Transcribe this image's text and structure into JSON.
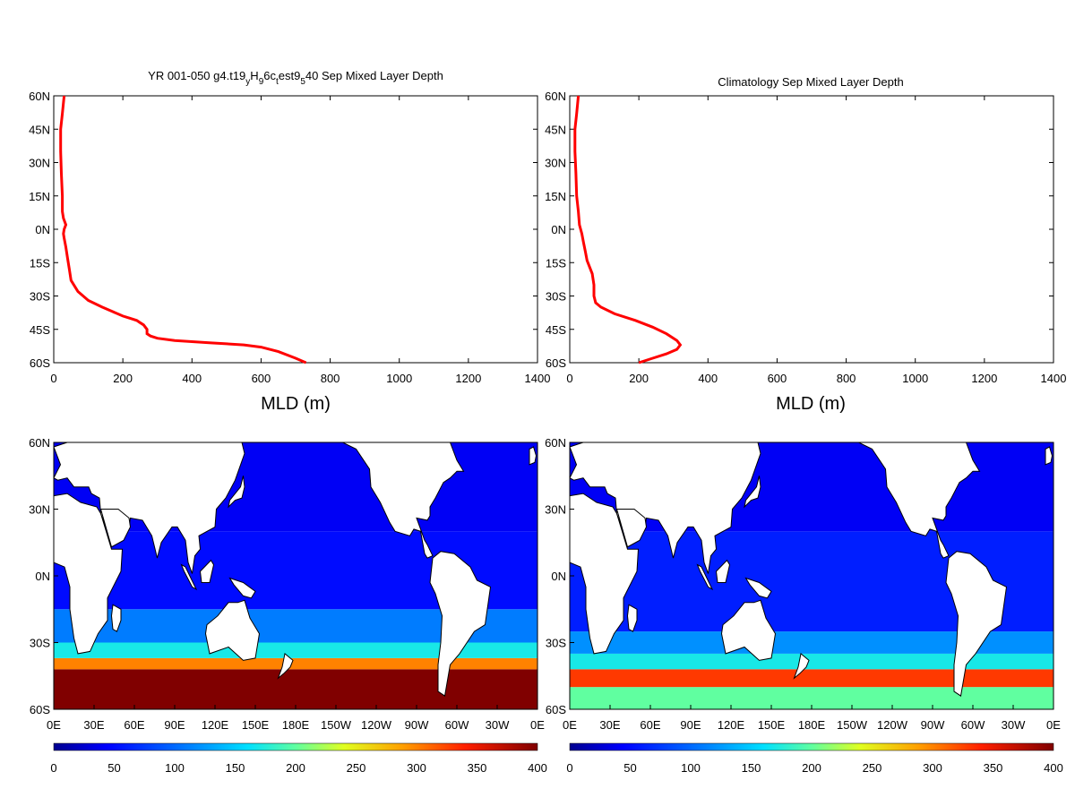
{
  "panels": {
    "top_left": {
      "title": "YR 001-050 g4.t19",
      "title_parts": [
        {
          "t": "YR 001-050 g4.t19",
          "sub": false
        },
        {
          "t": "y",
          "sub": true
        },
        {
          "t": "H",
          "sub": false
        },
        {
          "t": "9",
          "sub": true
        },
        {
          "t": "6c",
          "sub": false
        },
        {
          "t": "t",
          "sub": true
        },
        {
          "t": "est9",
          "sub": false
        },
        {
          "t": "5",
          "sub": true
        },
        {
          "t": "40 Sep Mixed Layer Depth",
          "sub": false
        }
      ]
    },
    "top_right": {
      "title": "Climatology Sep Mixed Layer Depth"
    }
  },
  "colorbar": {
    "ticks": [
      "0",
      "50",
      "100",
      "150",
      "200",
      "250",
      "300",
      "350",
      "400"
    ],
    "colors": [
      "#00008f",
      "#0000ff",
      "#0060ff",
      "#00c0ff",
      "#40ffc0",
      "#c0ff40",
      "#ffd000",
      "#ff6000",
      "#e00000",
      "#800000"
    ]
  },
  "chart_data": [
    {
      "type": "line",
      "xlabel": "MLD (m)",
      "ylabel": "",
      "xlim": [
        0,
        1400
      ],
      "ylim": [
        -60,
        60
      ],
      "x_ticks": [
        "0",
        "200",
        "400",
        "600",
        "800",
        "1000",
        "1200",
        "1400"
      ],
      "y_ticks": [
        "60N",
        "45N",
        "30N",
        "15N",
        "0N",
        "15S",
        "30S",
        "45S",
        "60S"
      ],
      "series": [
        {
          "color": "#ff0000",
          "points": [
            [
              730,
              -60
            ],
            [
              700,
              -58
            ],
            [
              650,
              -55
            ],
            [
              600,
              -53
            ],
            [
              550,
              -52
            ],
            [
              500,
              -51.5
            ],
            [
              450,
              -51
            ],
            [
              350,
              -50
            ],
            [
              300,
              -49
            ],
            [
              280,
              -48
            ],
            [
              270,
              -47
            ],
            [
              270,
              -45
            ],
            [
              260,
              -43
            ],
            [
              250,
              -42
            ],
            [
              240,
              -41
            ],
            [
              220,
              -40
            ],
            [
              200,
              -39
            ],
            [
              170,
              -37
            ],
            [
              140,
              -35
            ],
            [
              100,
              -32
            ],
            [
              70,
              -28
            ],
            [
              50,
              -23
            ],
            [
              45,
              -18
            ],
            [
              40,
              -13
            ],
            [
              35,
              -8
            ],
            [
              30,
              -4
            ],
            [
              28,
              -2
            ],
            [
              30,
              0
            ],
            [
              35,
              2
            ],
            [
              28,
              5
            ],
            [
              25,
              8
            ],
            [
              25,
              15
            ],
            [
              22,
              25
            ],
            [
              20,
              35
            ],
            [
              20,
              45
            ],
            [
              25,
              52
            ],
            [
              30,
              60
            ]
          ]
        }
      ]
    },
    {
      "type": "line",
      "xlabel": "MLD (m)",
      "ylabel": "",
      "xlim": [
        0,
        1400
      ],
      "ylim": [
        -60,
        60
      ],
      "x_ticks": [
        "0",
        "200",
        "400",
        "600",
        "800",
        "1000",
        "1200",
        "1400"
      ],
      "y_ticks": [
        "60N",
        "45N",
        "30N",
        "15N",
        "0N",
        "15S",
        "30S",
        "45S",
        "60S"
      ],
      "series": [
        {
          "color": "#ff0000",
          "points": [
            [
              200,
              -60
            ],
            [
              240,
              -58
            ],
            [
              280,
              -56
            ],
            [
              310,
              -54
            ],
            [
              320,
              -52
            ],
            [
              310,
              -50
            ],
            [
              280,
              -47
            ],
            [
              240,
              -44
            ],
            [
              190,
              -41
            ],
            [
              130,
              -38
            ],
            [
              90,
              -35
            ],
            [
              75,
              -33
            ],
            [
              70,
              -30
            ],
            [
              70,
              -25
            ],
            [
              65,
              -20
            ],
            [
              50,
              -14
            ],
            [
              45,
              -10
            ],
            [
              40,
              -6
            ],
            [
              35,
              -2
            ],
            [
              28,
              2
            ],
            [
              25,
              8
            ],
            [
              20,
              15
            ],
            [
              18,
              25
            ],
            [
              15,
              35
            ],
            [
              15,
              45
            ],
            [
              20,
              52
            ],
            [
              25,
              60
            ]
          ]
        }
      ]
    },
    {
      "type": "heatmap",
      "title": "",
      "xlabel": "",
      "ylabel": "",
      "x_ticks": [
        "0E",
        "30E",
        "60E",
        "90E",
        "120E",
        "150E",
        "180E",
        "150W",
        "120W",
        "90W",
        "60W",
        "30W",
        "0E"
      ],
      "y_ticks": [
        "60N",
        "30N",
        "0N",
        "30S",
        "60S"
      ],
      "lon_range": [
        0,
        360
      ],
      "lat_range": [
        -60,
        60
      ],
      "color_range": [
        0,
        400
      ],
      "bands": [
        {
          "lat_from": -60,
          "lat_to": -42,
          "value": 400
        },
        {
          "lat_from": -42,
          "lat_to": -37,
          "value": 300
        },
        {
          "lat_from": -37,
          "lat_to": -30,
          "value": 170
        },
        {
          "lat_from": -30,
          "lat_to": -15,
          "value": 110
        },
        {
          "lat_from": -15,
          "lat_to": 20,
          "value": 50
        },
        {
          "lat_from": 20,
          "lat_to": 60,
          "value": 40
        }
      ]
    },
    {
      "type": "heatmap",
      "title": "",
      "xlabel": "",
      "ylabel": "",
      "x_ticks": [
        "0E",
        "30E",
        "60E",
        "90E",
        "120E",
        "150E",
        "180E",
        "150W",
        "120W",
        "90W",
        "60W",
        "30W",
        "0E"
      ],
      "y_ticks": [
        "60N",
        "30N",
        "0N",
        "30S",
        "60S"
      ],
      "lon_range": [
        0,
        360
      ],
      "lat_range": [
        -60,
        60
      ],
      "color_range": [
        0,
        400
      ],
      "bands": [
        {
          "lat_from": -60,
          "lat_to": -50,
          "value": 200
        },
        {
          "lat_from": -50,
          "lat_to": -42,
          "value": 330
        },
        {
          "lat_from": -42,
          "lat_to": -35,
          "value": 170
        },
        {
          "lat_from": -35,
          "lat_to": -25,
          "value": 120
        },
        {
          "lat_from": -25,
          "lat_to": 20,
          "value": 60
        },
        {
          "lat_from": 20,
          "lat_to": 60,
          "value": 40
        }
      ]
    }
  ]
}
